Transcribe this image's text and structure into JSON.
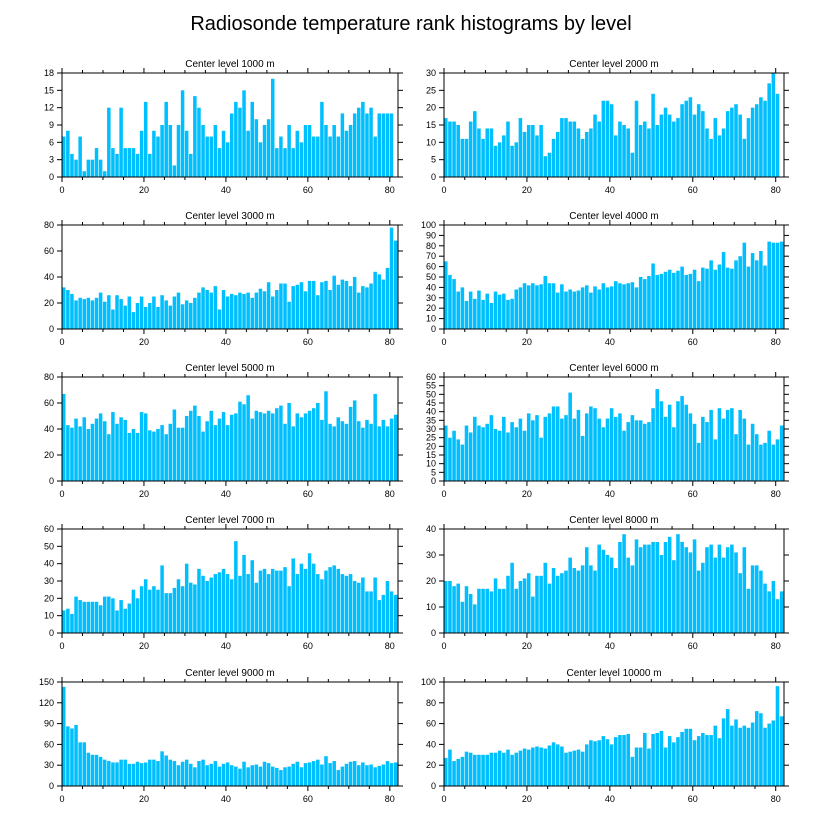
{
  "figure_title": "Radiosonde temperature rank histograms by level",
  "bar_color": "#00bfff",
  "chart_data": [
    {
      "type": "bar",
      "title": "Center level 1000 m",
      "xlim": [
        0,
        82
      ],
      "ylim": [
        0,
        18
      ],
      "xticks": [
        0,
        20,
        40,
        60,
        80
      ],
      "yticks": [
        0,
        3,
        6,
        9,
        12,
        15,
        18
      ],
      "values": [
        7,
        8,
        4,
        3,
        7,
        1,
        3,
        3,
        5,
        3,
        1,
        12,
        5,
        4,
        12,
        5,
        5,
        5,
        4,
        8,
        13,
        4,
        8,
        7,
        9,
        13,
        9,
        2,
        9,
        15,
        8,
        4,
        14,
        12,
        9,
        7,
        7,
        9,
        5,
        8,
        6,
        11,
        13,
        12,
        15,
        8,
        13,
        10,
        6,
        9,
        10,
        17,
        5,
        7,
        5,
        9,
        5,
        8,
        6,
        9,
        9,
        7,
        7,
        13,
        9,
        7,
        9,
        7,
        11,
        8,
        9,
        11,
        12,
        13,
        11,
        12,
        7,
        11,
        11,
        11,
        11
      ]
    },
    {
      "type": "bar",
      "title": "Center level 2000 m",
      "xlim": [
        0,
        82
      ],
      "ylim": [
        0,
        30
      ],
      "xticks": [
        0,
        20,
        40,
        60,
        80
      ],
      "yticks": [
        0,
        5,
        10,
        15,
        20,
        25,
        30
      ],
      "values": [
        17,
        16,
        16,
        15,
        11,
        11,
        16,
        19,
        14,
        11,
        14,
        14,
        9,
        10,
        12,
        16,
        9,
        10,
        17,
        13,
        15,
        15,
        12,
        15,
        6,
        7,
        11,
        13,
        17,
        17,
        16,
        16,
        14,
        11,
        13,
        14,
        18,
        16,
        22,
        22,
        21,
        12,
        16,
        15,
        14,
        7,
        22,
        15,
        16,
        14,
        24,
        15,
        18,
        20,
        18,
        16,
        17,
        21,
        22,
        23,
        18,
        21,
        19,
        14,
        11,
        17,
        12,
        14,
        19,
        20,
        21,
        18,
        11,
        17,
        20,
        21,
        23,
        22,
        27,
        30,
        24
      ]
    },
    {
      "type": "bar",
      "title": "Center level 3000 m",
      "xlim": [
        0,
        82
      ],
      "ylim": [
        0,
        80
      ],
      "xticks": [
        0,
        20,
        40,
        60,
        80
      ],
      "yticks": [
        0,
        20,
        40,
        60,
        80
      ],
      "values": [
        32,
        30,
        27,
        22,
        24,
        23,
        24,
        22,
        24,
        28,
        21,
        26,
        15,
        26,
        23,
        18,
        25,
        13,
        20,
        25,
        17,
        20,
        25,
        17,
        26,
        22,
        18,
        25,
        28,
        19,
        22,
        20,
        24,
        28,
        32,
        30,
        28,
        33,
        15,
        30,
        25,
        27,
        26,
        28,
        27,
        28,
        24,
        28,
        31,
        29,
        36,
        25,
        30,
        35,
        35,
        21,
        33,
        34,
        36,
        29,
        37,
        37,
        26,
        36,
        37,
        30,
        41,
        34,
        38,
        37,
        33,
        40,
        28,
        33,
        32,
        35,
        44,
        42,
        38,
        47,
        78,
        68
      ]
    },
    {
      "type": "bar",
      "title": "Center level 4000 m",
      "xlim": [
        0,
        82
      ],
      "ylim": [
        0,
        100
      ],
      "xticks": [
        0,
        20,
        40,
        60,
        80
      ],
      "yticks": [
        0,
        10,
        20,
        30,
        40,
        50,
        60,
        70,
        80,
        90,
        100
      ],
      "values": [
        65,
        52,
        48,
        36,
        40,
        27,
        36,
        29,
        37,
        28,
        34,
        25,
        36,
        33,
        34,
        28,
        29,
        38,
        40,
        44,
        42,
        44,
        42,
        43,
        51,
        44,
        44,
        35,
        43,
        36,
        38,
        36,
        37,
        40,
        42,
        35,
        41,
        38,
        44,
        40,
        41,
        46,
        44,
        43,
        44,
        45,
        40,
        50,
        48,
        51,
        63,
        52,
        53,
        55,
        57,
        54,
        56,
        60,
        52,
        53,
        57,
        46,
        59,
        58,
        66,
        57,
        62,
        74,
        59,
        58,
        66,
        70,
        83,
        60,
        73,
        66,
        75,
        61,
        84,
        83,
        83,
        84
      ]
    },
    {
      "type": "bar",
      "title": "Center level 5000 m",
      "xlim": [
        0,
        82
      ],
      "ylim": [
        0,
        80
      ],
      "xticks": [
        0,
        20,
        40,
        60,
        80
      ],
      "yticks": [
        0,
        20,
        40,
        60,
        80
      ],
      "values": [
        67,
        43,
        41,
        48,
        42,
        49,
        40,
        44,
        48,
        52,
        46,
        36,
        53,
        44,
        49,
        47,
        37,
        40,
        37,
        53,
        52,
        39,
        38,
        40,
        43,
        36,
        44,
        55,
        41,
        41,
        50,
        54,
        58,
        50,
        38,
        46,
        54,
        43,
        48,
        53,
        43,
        51,
        52,
        61,
        59,
        66,
        48,
        54,
        53,
        52,
        54,
        52,
        56,
        58,
        44,
        60,
        42,
        52,
        49,
        52,
        54,
        56,
        60,
        47,
        69,
        44,
        42,
        49,
        46,
        44,
        57,
        62,
        46,
        41,
        47,
        44,
        67,
        42,
        47,
        42,
        48,
        51
      ]
    },
    {
      "type": "bar",
      "title": "Center level 6000 m",
      "xlim": [
        0,
        82
      ],
      "ylim": [
        0,
        60
      ],
      "xticks": [
        0,
        20,
        40,
        60,
        80
      ],
      "yticks": [
        0,
        5,
        10,
        15,
        20,
        25,
        30,
        35,
        40,
        45,
        50,
        55,
        60
      ],
      "values": [
        32,
        25,
        29,
        24,
        21,
        32,
        28,
        37,
        32,
        31,
        33,
        38,
        30,
        29,
        37,
        28,
        34,
        31,
        36,
        29,
        39,
        35,
        38,
        25,
        37,
        39,
        43,
        43,
        36,
        38,
        51,
        36,
        41,
        26,
        39,
        43,
        42,
        36,
        31,
        36,
        42,
        37,
        39,
        29,
        34,
        38,
        35,
        35,
        33,
        34,
        42,
        53,
        46,
        37,
        44,
        31,
        46,
        49,
        44,
        39,
        33,
        22,
        37,
        34,
        41,
        24,
        42,
        36,
        41,
        42,
        27,
        41,
        36,
        21,
        33,
        27,
        21,
        22,
        29,
        21,
        24,
        32
      ]
    },
    {
      "type": "bar",
      "title": "Center level 7000 m",
      "xlim": [
        0,
        82
      ],
      "ylim": [
        0,
        60
      ],
      "xticks": [
        0,
        20,
        40,
        60,
        80
      ],
      "yticks": [
        0,
        10,
        20,
        30,
        40,
        50,
        60
      ],
      "values": [
        13,
        14,
        11,
        21,
        19,
        18,
        18,
        18,
        18,
        16,
        21,
        21,
        20,
        13,
        19,
        14,
        17,
        25,
        20,
        27,
        31,
        25,
        27,
        25,
        39,
        23,
        23,
        26,
        31,
        27,
        40,
        29,
        28,
        37,
        33,
        30,
        32,
        34,
        35,
        37,
        34,
        31,
        53,
        33,
        45,
        34,
        42,
        29,
        36,
        37,
        34,
        37,
        36,
        36,
        38,
        27,
        43,
        34,
        40,
        37,
        46,
        40,
        34,
        31,
        36,
        38,
        39,
        37,
        34,
        33,
        34,
        30,
        29,
        32,
        24,
        24,
        32,
        19,
        22,
        30,
        24,
        22
      ]
    },
    {
      "type": "bar",
      "title": "Center level 8000 m",
      "xlim": [
        0,
        82
      ],
      "ylim": [
        0,
        40
      ],
      "xticks": [
        0,
        20,
        40,
        60,
        80
      ],
      "yticks": [
        0,
        10,
        20,
        30,
        40
      ],
      "values": [
        20,
        20,
        18,
        19,
        12,
        18,
        15,
        11,
        17,
        17,
        17,
        16,
        21,
        17,
        17,
        22,
        27,
        17,
        20,
        21,
        23,
        14,
        22,
        22,
        27,
        19,
        25,
        22,
        23,
        24,
        29,
        25,
        24,
        26,
        33,
        26,
        24,
        34,
        32,
        30,
        29,
        25,
        35,
        38,
        29,
        26,
        36,
        33,
        34,
        34,
        35,
        35,
        30,
        35,
        37,
        28,
        38,
        35,
        33,
        31,
        36,
        24,
        27,
        33,
        34,
        29,
        34,
        29,
        33,
        34,
        31,
        23,
        33,
        17,
        26,
        26,
        24,
        19,
        16,
        20,
        13,
        16
      ]
    },
    {
      "type": "bar",
      "title": "Center level 9000 m",
      "xlim": [
        0,
        82
      ],
      "ylim": [
        0,
        150
      ],
      "xticks": [
        0,
        20,
        40,
        60,
        80
      ],
      "yticks": [
        0,
        30,
        60,
        90,
        120,
        150
      ],
      "values": [
        143,
        86,
        83,
        88,
        63,
        63,
        48,
        45,
        45,
        42,
        38,
        36,
        34,
        34,
        38,
        38,
        32,
        32,
        35,
        33,
        34,
        38,
        38,
        36,
        50,
        44,
        38,
        36,
        30,
        35,
        38,
        32,
        27,
        36,
        38,
        30,
        32,
        36,
        28,
        32,
        34,
        30,
        28,
        25,
        35,
        27,
        30,
        31,
        28,
        35,
        33,
        28,
        26,
        23,
        27,
        28,
        32,
        35,
        27,
        33,
        34,
        36,
        38,
        31,
        43,
        33,
        36,
        23,
        28,
        32,
        35,
        36,
        30,
        34,
        30,
        31,
        27,
        29,
        31,
        36,
        33,
        34
      ]
    },
    {
      "type": "bar",
      "title": "Center level 10000 m",
      "xlim": [
        0,
        82
      ],
      "ylim": [
        0,
        100
      ],
      "xticks": [
        0,
        20,
        40,
        60,
        80
      ],
      "yticks": [
        0,
        20,
        40,
        60,
        80,
        100
      ],
      "values": [
        27,
        35,
        24,
        26,
        28,
        33,
        32,
        30,
        30,
        30,
        30,
        32,
        32,
        34,
        32,
        35,
        30,
        32,
        34,
        36,
        35,
        37,
        38,
        37,
        36,
        39,
        42,
        40,
        38,
        32,
        33,
        34,
        35,
        33,
        40,
        44,
        43,
        44,
        48,
        45,
        40,
        47,
        49,
        49,
        50,
        28,
        37,
        37,
        51,
        36,
        50,
        51,
        53,
        37,
        48,
        42,
        47,
        52,
        55,
        55,
        44,
        48,
        51,
        49,
        49,
        58,
        46,
        65,
        74,
        58,
        64,
        56,
        58,
        56,
        61,
        72,
        70,
        56,
        60,
        63,
        96,
        67
      ]
    }
  ]
}
